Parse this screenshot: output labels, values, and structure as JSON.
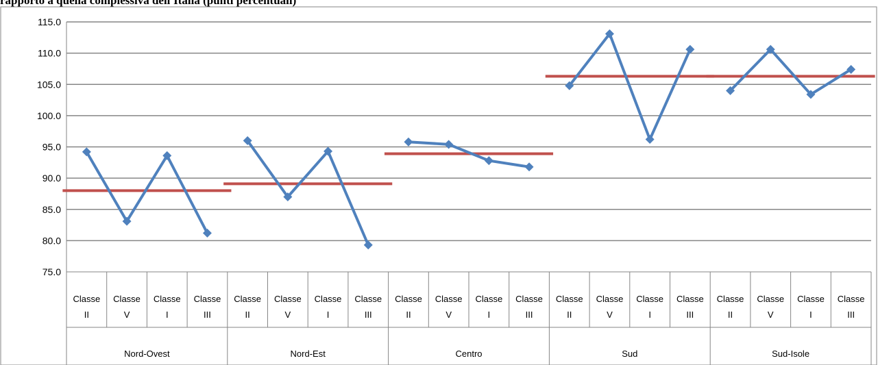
{
  "header": {
    "title": "rapporto a quella complessiva dell'Italia  (punti percentuali)"
  },
  "chart_data": {
    "type": "line",
    "title": "rapporto a quella complessiva dell'Italia  (punti percentuali)",
    "xlabel": "",
    "ylabel": "",
    "ylim": [
      75,
      115
    ],
    "yticks": [
      "75.0",
      "80.0",
      "85.0",
      "90.0",
      "95.0",
      "100.0",
      "105.0",
      "110.0",
      "115.0"
    ],
    "grid": true,
    "legend": "none",
    "groups": [
      {
        "name": "Nord-Ovest",
        "categories": [
          [
            "Classe",
            "II"
          ],
          [
            "Classe",
            "V"
          ],
          [
            "Classe",
            "I"
          ],
          [
            "Classe",
            "III"
          ]
        ],
        "values": [
          94.2,
          83.1,
          93.6,
          81.2
        ],
        "mean": 88.0
      },
      {
        "name": "Nord-Est",
        "categories": [
          [
            "Classe",
            "II"
          ],
          [
            "Classe",
            "V"
          ],
          [
            "Classe",
            "I"
          ],
          [
            "Classe",
            "III"
          ]
        ],
        "values": [
          96.0,
          87.0,
          94.3,
          79.3
        ],
        "mean": 89.1
      },
      {
        "name": "Centro",
        "categories": [
          [
            "Classe",
            "II"
          ],
          [
            "Classe",
            "V"
          ],
          [
            "Classe",
            "I"
          ],
          [
            "Classe",
            "III"
          ]
        ],
        "values": [
          95.8,
          95.4,
          92.8,
          91.8
        ],
        "mean": 93.9
      },
      {
        "name": "Sud",
        "categories": [
          [
            "Classe",
            "II"
          ],
          [
            "Classe",
            "V"
          ],
          [
            "Classe",
            "I"
          ],
          [
            "Classe",
            "III"
          ]
        ],
        "values": [
          104.8,
          113.1,
          96.2,
          110.6
        ],
        "mean": 106.3
      },
      {
        "name": "Sud-Isole",
        "categories": [
          [
            "Classe",
            "II"
          ],
          [
            "Classe",
            "V"
          ],
          [
            "Classe",
            "I"
          ],
          [
            "Classe",
            "III"
          ]
        ],
        "values": [
          104.0,
          110.6,
          103.4,
          107.4
        ],
        "mean": 106.3
      }
    ],
    "colors": {
      "series": "#4f81bd",
      "mean": "#c0504d",
      "grid": "#868686",
      "axis": "#868686"
    }
  }
}
